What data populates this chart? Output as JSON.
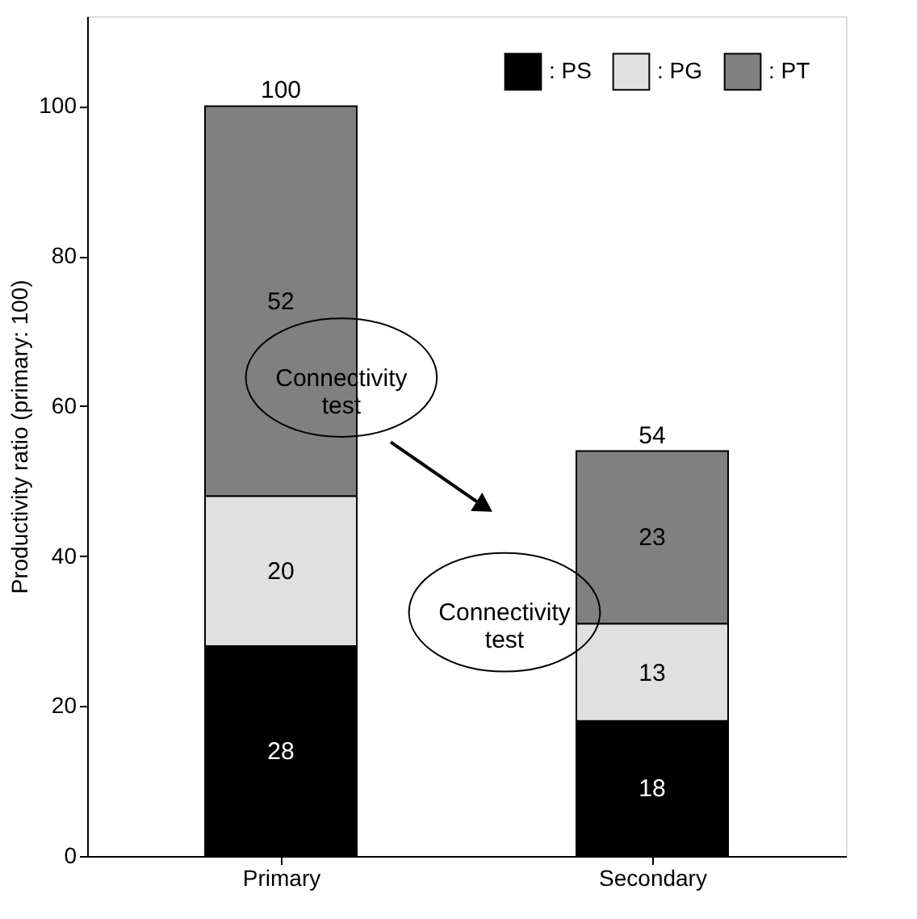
{
  "chart_data": {
    "type": "bar",
    "ylabel": "Productivity ratio (primary: 100)",
    "categories": [
      "Primary",
      "Secondary"
    ],
    "stacked": true,
    "series": [
      {
        "name": ": PS",
        "color": "#000000",
        "values": [
          28,
          18
        ]
      },
      {
        "name": ": PG",
        "color": "#e0e0e0",
        "values": [
          20,
          13
        ]
      },
      {
        "name": ": PT",
        "color": "#808080",
        "values": [
          52,
          23
        ]
      }
    ],
    "totals": [
      "100",
      "54"
    ],
    "data_labels": true,
    "ylim": [
      0,
      112
    ],
    "yticks": [
      0,
      20,
      40,
      60,
      80,
      100
    ],
    "grid": false,
    "legend": "top right",
    "annotations": [
      "Connectivity test",
      "Connectivity test"
    ]
  }
}
